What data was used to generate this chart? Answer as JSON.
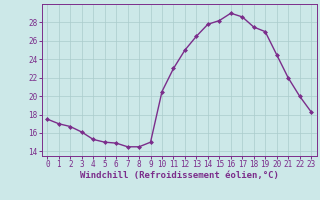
{
  "x": [
    0,
    1,
    2,
    3,
    4,
    5,
    6,
    7,
    8,
    9,
    10,
    11,
    12,
    13,
    14,
    15,
    16,
    17,
    18,
    19,
    20,
    21,
    22,
    23
  ],
  "y": [
    17.5,
    17.0,
    16.7,
    16.1,
    15.3,
    15.0,
    14.9,
    14.5,
    14.5,
    15.0,
    20.5,
    23.0,
    25.0,
    26.5,
    27.8,
    28.2,
    29.0,
    28.6,
    27.5,
    27.0,
    24.5,
    22.0,
    20.0,
    18.3
  ],
  "line_color": "#7b2d8b",
  "marker": "D",
  "markersize": 2.0,
  "linewidth": 1.0,
  "xlabel": "Windchill (Refroidissement éolien,°C)",
  "ylim": [
    13.5,
    30.0
  ],
  "xlim": [
    -0.5,
    23.5
  ],
  "yticks": [
    14,
    16,
    18,
    20,
    22,
    24,
    26,
    28
  ],
  "background_color": "#cce8e8",
  "grid_color": "#aacccc",
  "tick_fontsize": 5.5,
  "xlabel_fontsize": 6.5
}
